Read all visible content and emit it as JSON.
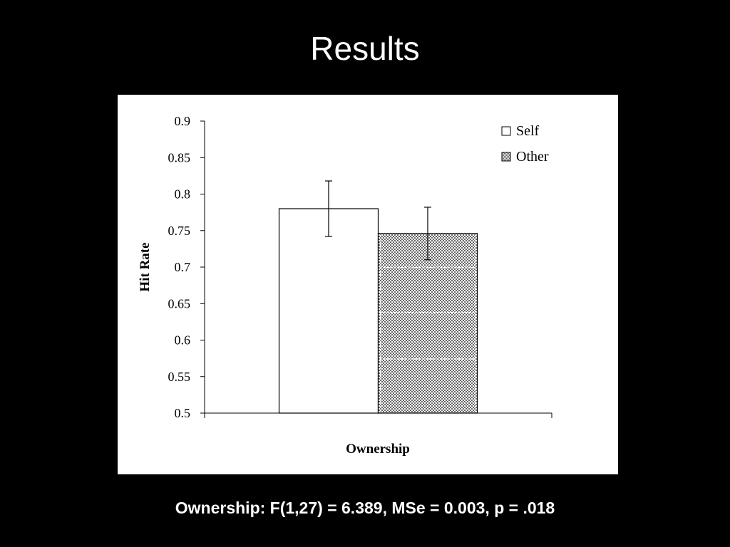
{
  "slide": {
    "title": "Results",
    "caption": "Ownership: F(1,27) = 6.389, MSe = 0.003, p = .018"
  },
  "chart_data": {
    "type": "bar",
    "categories": [
      "Ownership"
    ],
    "series": [
      {
        "name": "Self",
        "values": [
          0.78
        ],
        "error": [
          0.038
        ],
        "fill": "#ffffff",
        "pattern": "none"
      },
      {
        "name": "Other",
        "values": [
          0.746
        ],
        "error": [
          0.036
        ],
        "fill": "#9a9a9a",
        "pattern": "checker"
      }
    ],
    "xlabel": "Ownership",
    "ylabel": "Hit Rate",
    "ylim": [
      0.5,
      0.9
    ],
    "yticks": [
      "0.5",
      "0.55",
      "0.6",
      "0.65",
      "0.7",
      "0.75",
      "0.8",
      "0.85",
      "0.9"
    ],
    "grid": false,
    "legend_position": "top-right"
  }
}
